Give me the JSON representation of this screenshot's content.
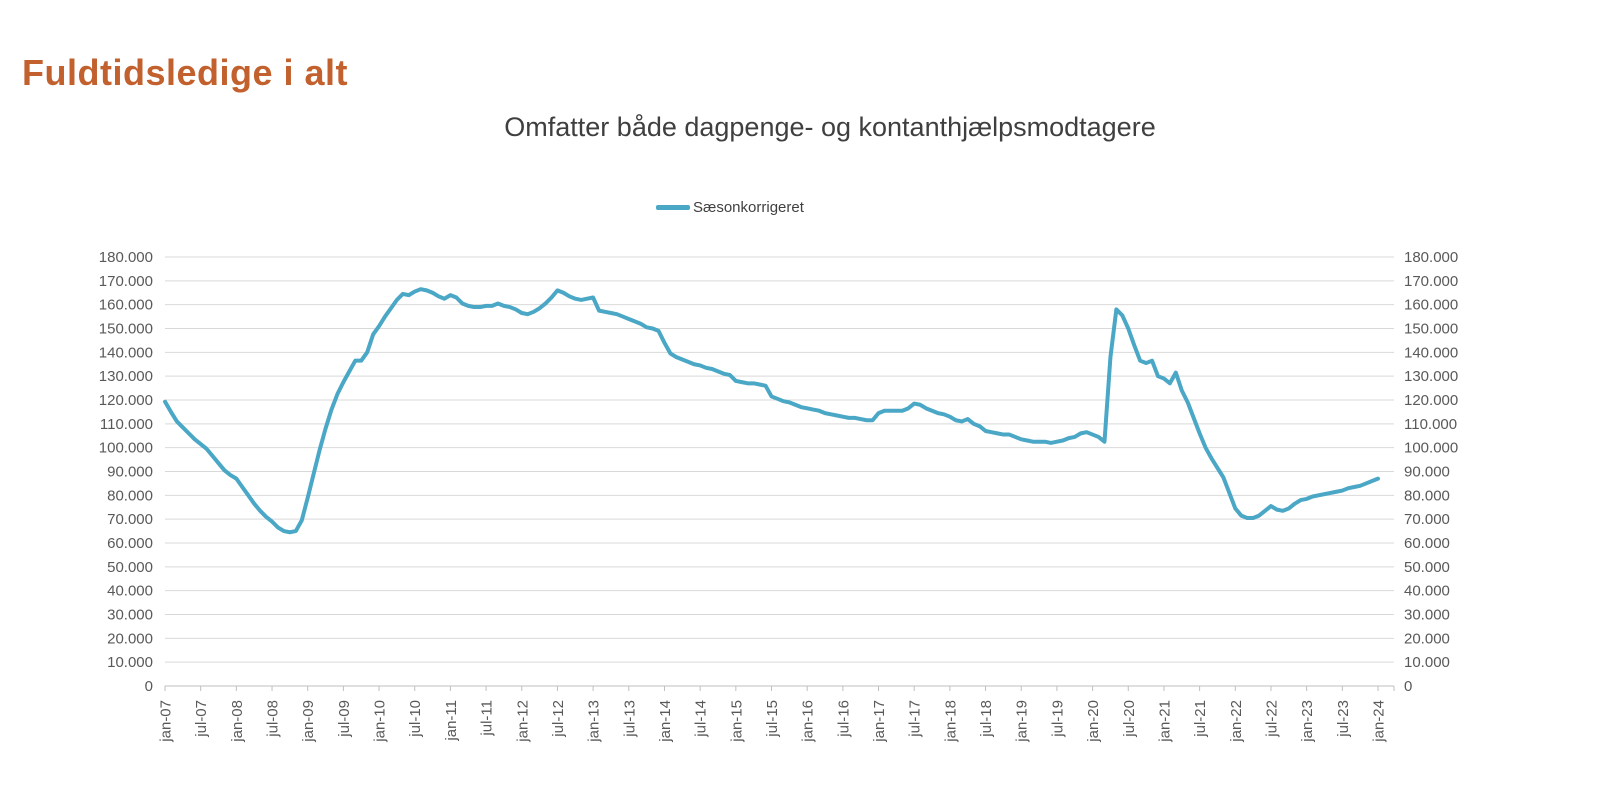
{
  "page": {
    "title": "Fuldtidsledige i alt"
  },
  "colors": {
    "title_text": "#C2612E",
    "subtitle_text": "#3f3f3f",
    "series_line": "#4AA7C6",
    "gridline": "#D9D9D9",
    "axis_line": "#BFBFBF",
    "axis_label_text": "#595959"
  },
  "chart_data": {
    "type": "line",
    "title": "Omfatter både dagpenge- og kontanthjælpsmodtagere",
    "legend_position": "top-center",
    "legend": {
      "label": "Sæsonkorrigeret",
      "color": "#4AA7C6"
    },
    "grid": "horizontal",
    "dual_y_axis": true,
    "ylim": [
      0,
      180000
    ],
    "y_tick_values": [
      0,
      10000,
      20000,
      30000,
      40000,
      50000,
      60000,
      70000,
      80000,
      90000,
      100000,
      110000,
      120000,
      130000,
      140000,
      150000,
      160000,
      170000,
      180000
    ],
    "y_tick_labels": [
      "0",
      "10.000",
      "20.000",
      "30.000",
      "40.000",
      "50.000",
      "60.000",
      "70.000",
      "80.000",
      "90.000",
      "100.000",
      "110.000",
      "120.000",
      "130.000",
      "140.000",
      "150.000",
      "160.000",
      "170.000",
      "180.000"
    ],
    "x_tick_labels": [
      "jan-07",
      "jul-07",
      "jan-08",
      "jul-08",
      "jan-09",
      "jul-09",
      "jan-10",
      "jul-10",
      "jan-11",
      "jul-11",
      "jan-12",
      "jul-12",
      "jan-13",
      "jul-13",
      "jan-14",
      "jul-14",
      "jan-15",
      "jul-15",
      "jan-16",
      "jul-16",
      "jan-17",
      "jul-17",
      "jan-18",
      "jul-18",
      "jan-19",
      "jul-19",
      "jan-20",
      "jul-20",
      "jan-21",
      "jul-21",
      "jan-22",
      "jul-22",
      "jan-23",
      "jul-23",
      "jan-24"
    ],
    "series": [
      {
        "name": "Sæsonkorrigeret",
        "frequency": "monthly",
        "start_month": "jan-07",
        "end_month": "jan-24",
        "values": [
          119300,
          115000,
          111000,
          108500,
          106000,
          103500,
          101500,
          99500,
          96500,
          93500,
          90500,
          88500,
          87000,
          83500,
          80000,
          76500,
          73500,
          71000,
          69000,
          66500,
          65000,
          64500,
          65000,
          69500,
          79000,
          89000,
          99000,
          108000,
          116000,
          122500,
          127500,
          132000,
          136500,
          136500,
          140000,
          147500,
          151000,
          155000,
          158500,
          162000,
          164500,
          164000,
          165500,
          166500,
          166000,
          165000,
          163500,
          162500,
          164000,
          163000,
          160500,
          159500,
          159000,
          159000,
          159500,
          159500,
          160500,
          159500,
          159000,
          158000,
          156500,
          156000,
          157000,
          158500,
          160500,
          163000,
          166000,
          165000,
          163500,
          162500,
          162000,
          162500,
          163000,
          157500,
          157000,
          156500,
          156000,
          155000,
          154000,
          153000,
          152000,
          150500,
          150000,
          149000,
          144000,
          139500,
          138000,
          137000,
          136000,
          135000,
          134500,
          133500,
          133000,
          132000,
          131000,
          130500,
          128000,
          127500,
          127000,
          127000,
          126500,
          126000,
          121500,
          120500,
          119500,
          119000,
          118000,
          117000,
          116500,
          116000,
          115500,
          114500,
          114000,
          113500,
          113000,
          112500,
          112500,
          112000,
          111500,
          111500,
          114500,
          115500,
          115500,
          115500,
          115500,
          116500,
          118500,
          118000,
          116500,
          115500,
          114500,
          114000,
          113000,
          111500,
          111000,
          112000,
          110000,
          109000,
          107000,
          106500,
          106000,
          105500,
          105500,
          104500,
          103500,
          103000,
          102500,
          102500,
          102500,
          102000,
          102500,
          103000,
          104000,
          104500,
          106000,
          106500,
          105500,
          104500,
          102500,
          138000,
          158000,
          155500,
          150000,
          143000,
          136500,
          135500,
          136500,
          130000,
          129000,
          127000,
          131500,
          124000,
          119000,
          112500,
          106000,
          100000,
          95500,
          91500,
          87500,
          81000,
          74500,
          71500,
          70500,
          70500,
          71500,
          73500,
          75500,
          74000,
          73500,
          74500,
          76500,
          78000,
          78500,
          79500,
          80000,
          80500,
          81000,
          81500,
          82000,
          83000,
          83500,
          84000,
          85000,
          86000,
          87000
        ]
      }
    ]
  }
}
